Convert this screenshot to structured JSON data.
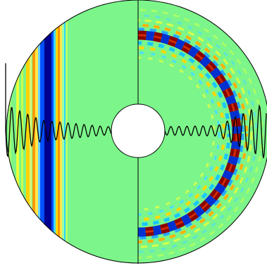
{
  "figure": {
    "colors": {
      "background": "#7cf58a",
      "deep_blue": "#00008f",
      "blue": "#0050ff",
      "cyan": "#26d5ff",
      "yellow": "#fff200",
      "orange": "#ff8a00",
      "dark_red": "#7f0000",
      "line": "#000000",
      "hole": "#ffffff"
    },
    "left_panel": {
      "description_name": "planar-wavefront-panel"
    },
    "right_panel": {
      "description_name": "circular-wavefront-panel"
    },
    "icons": [
      "annulus-outline",
      "signal-trace"
    ]
  }
}
